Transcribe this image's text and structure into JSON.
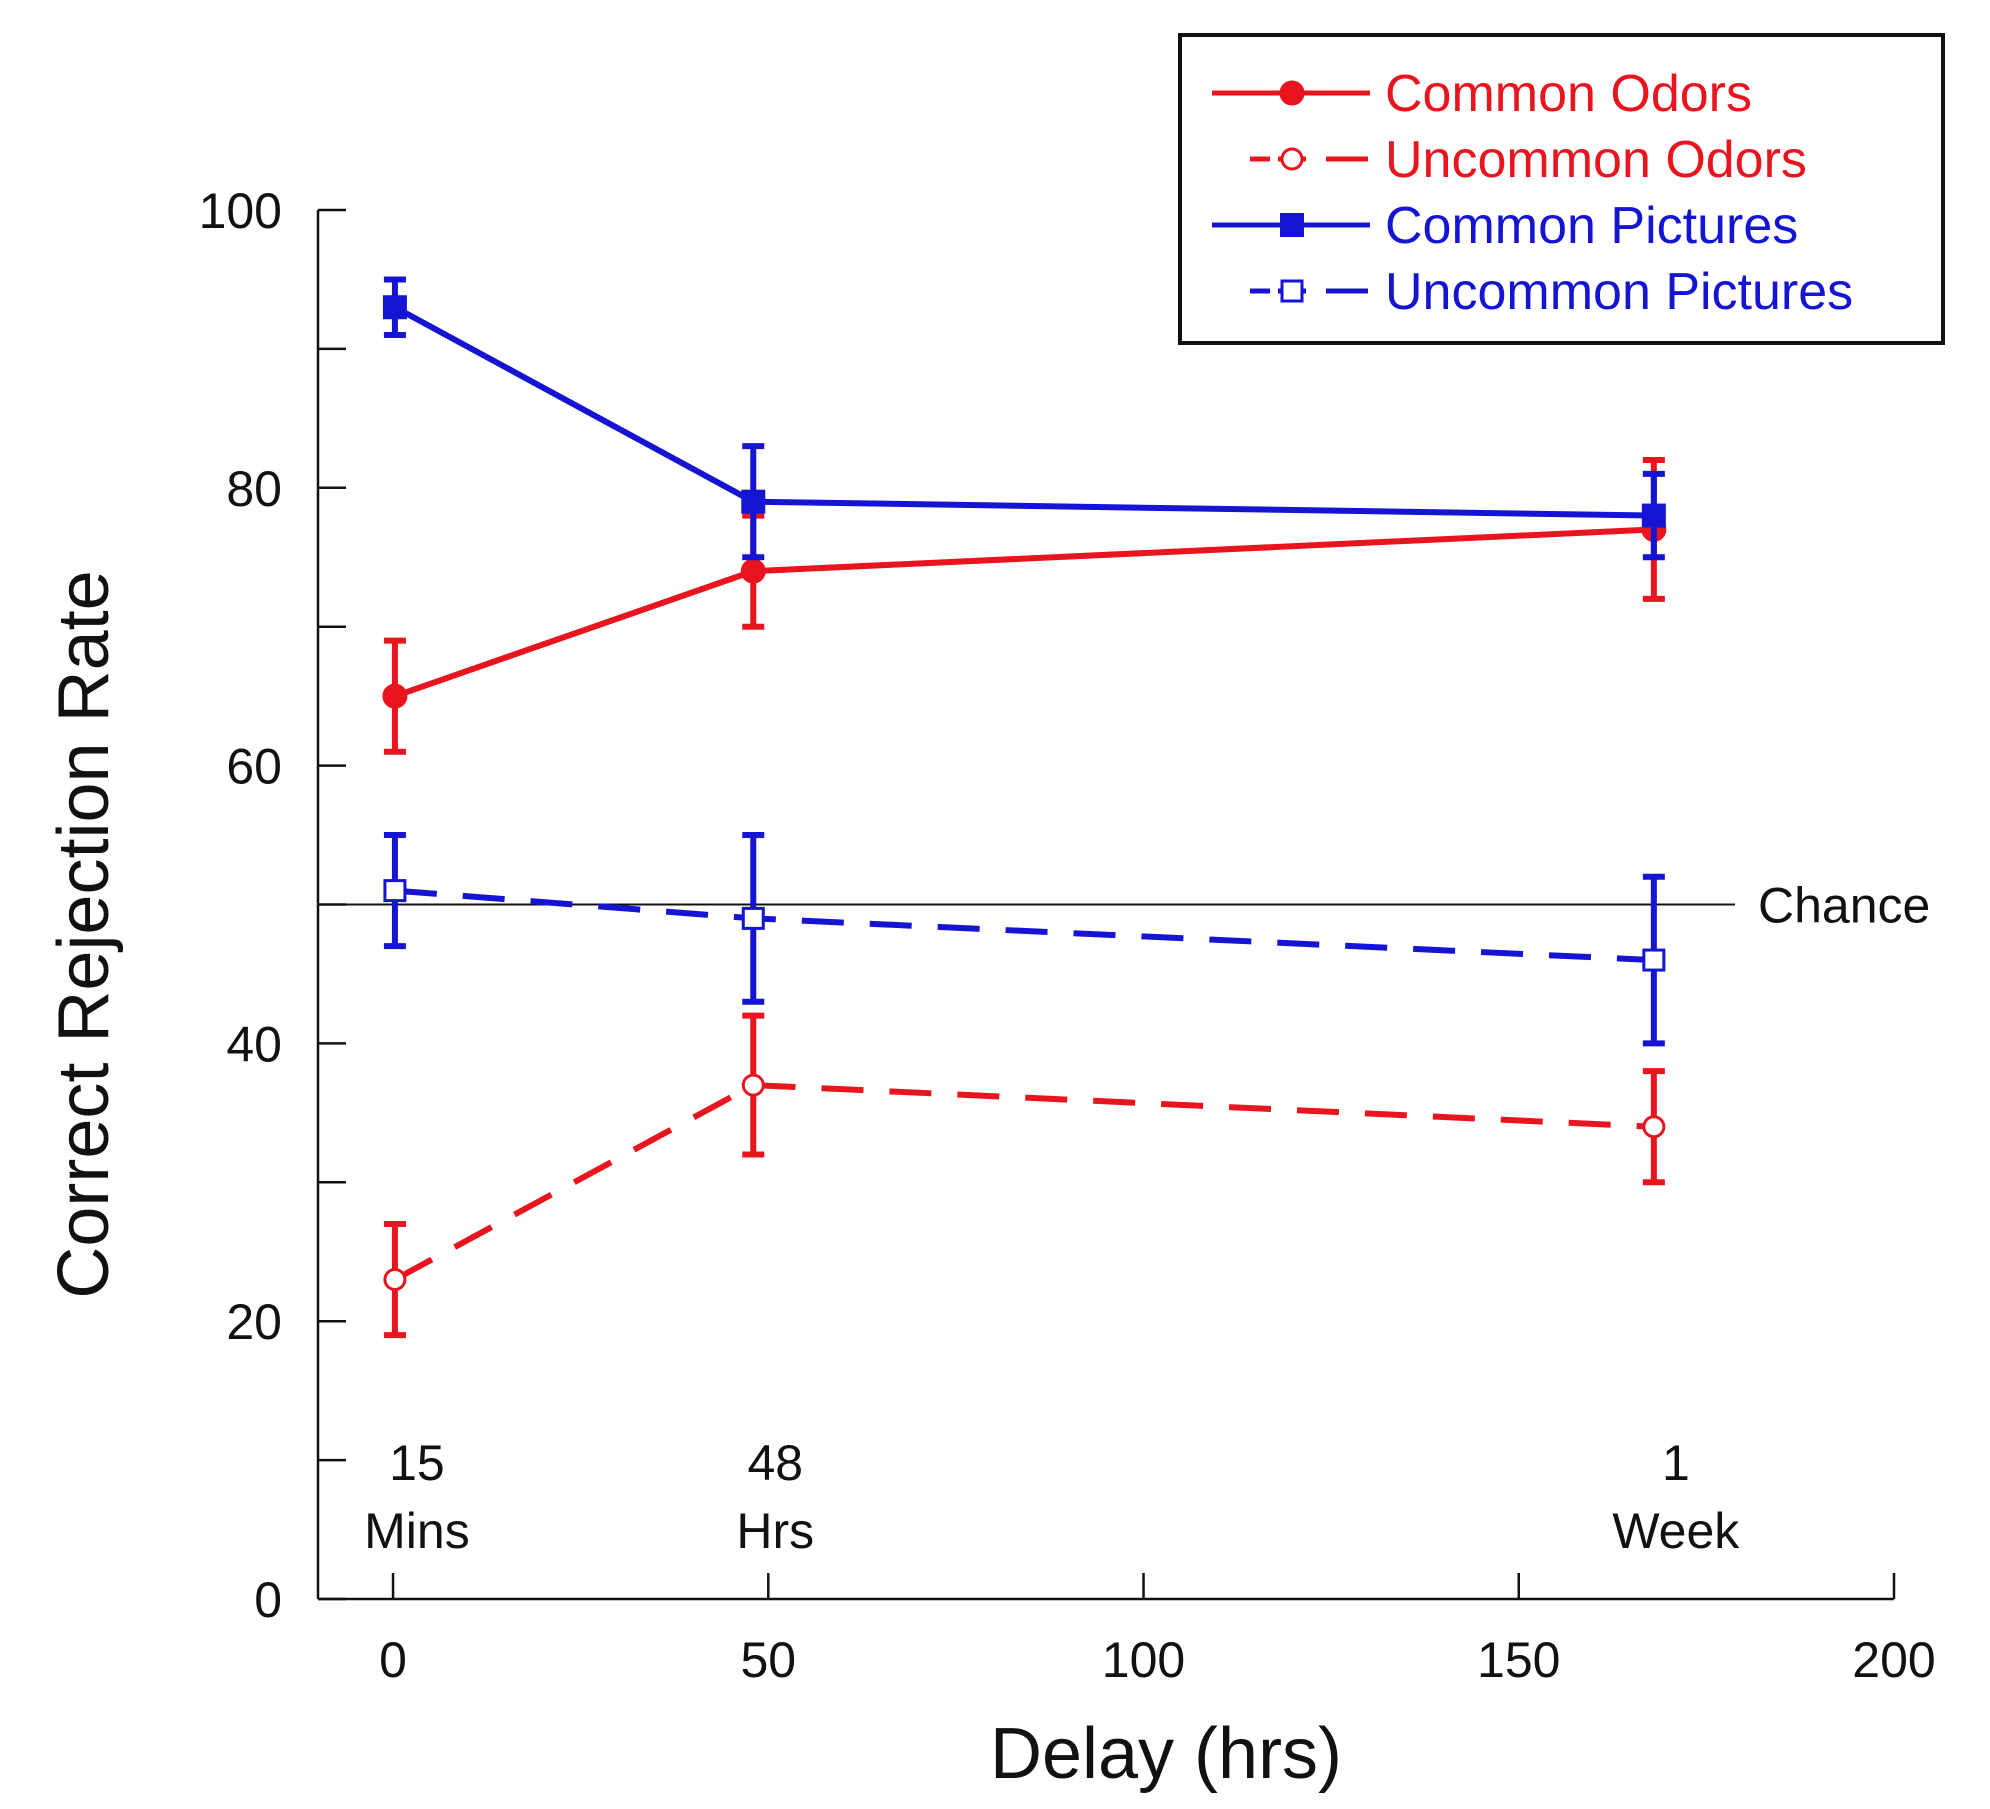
{
  "chart_data": {
    "type": "line",
    "xlabel": "Delay (hrs)",
    "ylabel": "Correct Rejection Rate",
    "xlim": [
      -10,
      200
    ],
    "ylim": [
      0,
      100
    ],
    "x_ticks": [
      0,
      50,
      100,
      150,
      200
    ],
    "y_tick_marks": [
      0,
      10,
      20,
      30,
      40,
      50,
      60,
      70,
      80,
      90,
      100
    ],
    "y_tick_labels": [
      0,
      20,
      40,
      60,
      80,
      100
    ],
    "grid": false,
    "legend_position": "top-right",
    "reference_line": {
      "y": 50,
      "label": "Chance"
    },
    "point_annotations": [
      {
        "x": 0.25,
        "line1": "15",
        "line2": "Mins"
      },
      {
        "x": 48,
        "line1": "48",
        "line2": "Hrs"
      },
      {
        "x": 168,
        "line1": "1",
        "line2": "Week"
      }
    ],
    "series": [
      {
        "name": "Common Odors",
        "color": "#e8141e",
        "marker": "circle-filled",
        "dash": false,
        "points": [
          {
            "x": 0.25,
            "y": 65,
            "err": 4
          },
          {
            "x": 48,
            "y": 74,
            "err": 4
          },
          {
            "x": 168,
            "y": 77,
            "err": 5
          }
        ]
      },
      {
        "name": "Uncommon Odors",
        "color": "#e8141e",
        "marker": "circle-open",
        "dash": true,
        "points": [
          {
            "x": 0.25,
            "y": 23,
            "err": 4
          },
          {
            "x": 48,
            "y": 37,
            "err": 5
          },
          {
            "x": 168,
            "y": 34,
            "err": 4
          }
        ]
      },
      {
        "name": "Common Pictures",
        "color": "#1414d2",
        "marker": "square-filled",
        "dash": false,
        "points": [
          {
            "x": 0.25,
            "y": 93,
            "err": 2
          },
          {
            "x": 48,
            "y": 79,
            "err": 4
          },
          {
            "x": 168,
            "y": 78,
            "err": 3
          }
        ]
      },
      {
        "name": "Uncommon Pictures",
        "color": "#1414d2",
        "marker": "square-open",
        "dash": true,
        "points": [
          {
            "x": 0.25,
            "y": 51,
            "err": 4
          },
          {
            "x": 48,
            "y": 49,
            "err": 6
          },
          {
            "x": 168,
            "y": 46,
            "err": 6
          }
        ]
      }
    ]
  }
}
